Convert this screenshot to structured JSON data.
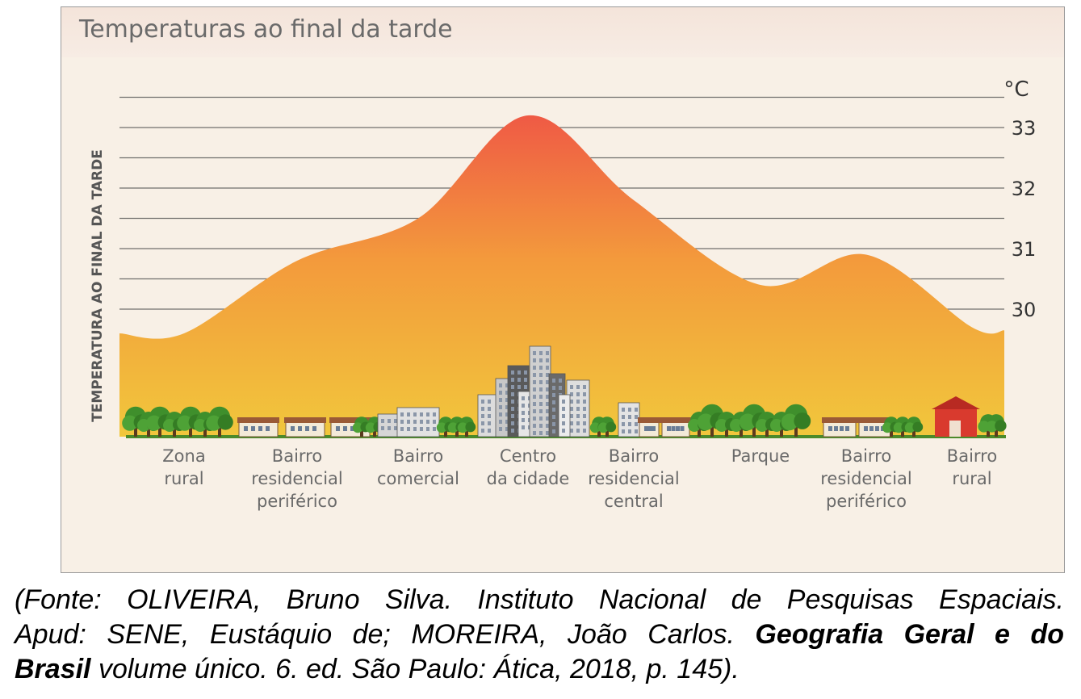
{
  "figure": {
    "title": "Temperaturas ao final da tarde"
  },
  "chart_data": {
    "type": "area",
    "title": "Temperaturas ao final da tarde",
    "xlabel": "",
    "ylabel": "TEMPERATURA AO FINAL DA TARDE",
    "y_unit": "°C",
    "yticks": [
      30,
      31,
      32,
      33
    ],
    "ylim": [
      28.5,
      33.5
    ],
    "grid": true,
    "categories": [
      "Zona rural",
      "Bairro residencial periférico",
      "Bairro comercial",
      "Centro da cidade",
      "Bairro residencial central",
      "Parque",
      "Bairro residencial periférico",
      "Bairro rural"
    ],
    "category_labels": [
      [
        "Zona",
        "rural"
      ],
      [
        "Bairro",
        "residencial",
        "periférico"
      ],
      [
        "Bairro",
        "comercial"
      ],
      [
        "Centro",
        "da cidade"
      ],
      [
        "Bairro",
        "residencial",
        "central"
      ],
      [
        "Parque"
      ],
      [
        "Bairro",
        "residencial",
        "periférico"
      ],
      [
        "Bairro",
        "rural"
      ]
    ],
    "values": [
      29.6,
      30.8,
      31.5,
      33.2,
      31.8,
      30.4,
      30.9,
      29.7
    ],
    "colors": {
      "low": "#f1c73c",
      "high": "#ef5a45",
      "grid": "#444444",
      "ground": "#4b8a2a"
    }
  },
  "caption": {
    "line1": "(Fonte: OLIVEIRA, Bruno Silva. Instituto Nacional de Pesquisas Espaciais.",
    "line2_regular": "Apud: SENE, Eustáquio de; MOREIRA, João Carlos. ",
    "line2_bold": "Geografia Geral e do",
    "line3_bold": "Brasil",
    "line3_regular": " volume único. 6. ed. São Paulo: Ática, 2018, p. 145)."
  }
}
